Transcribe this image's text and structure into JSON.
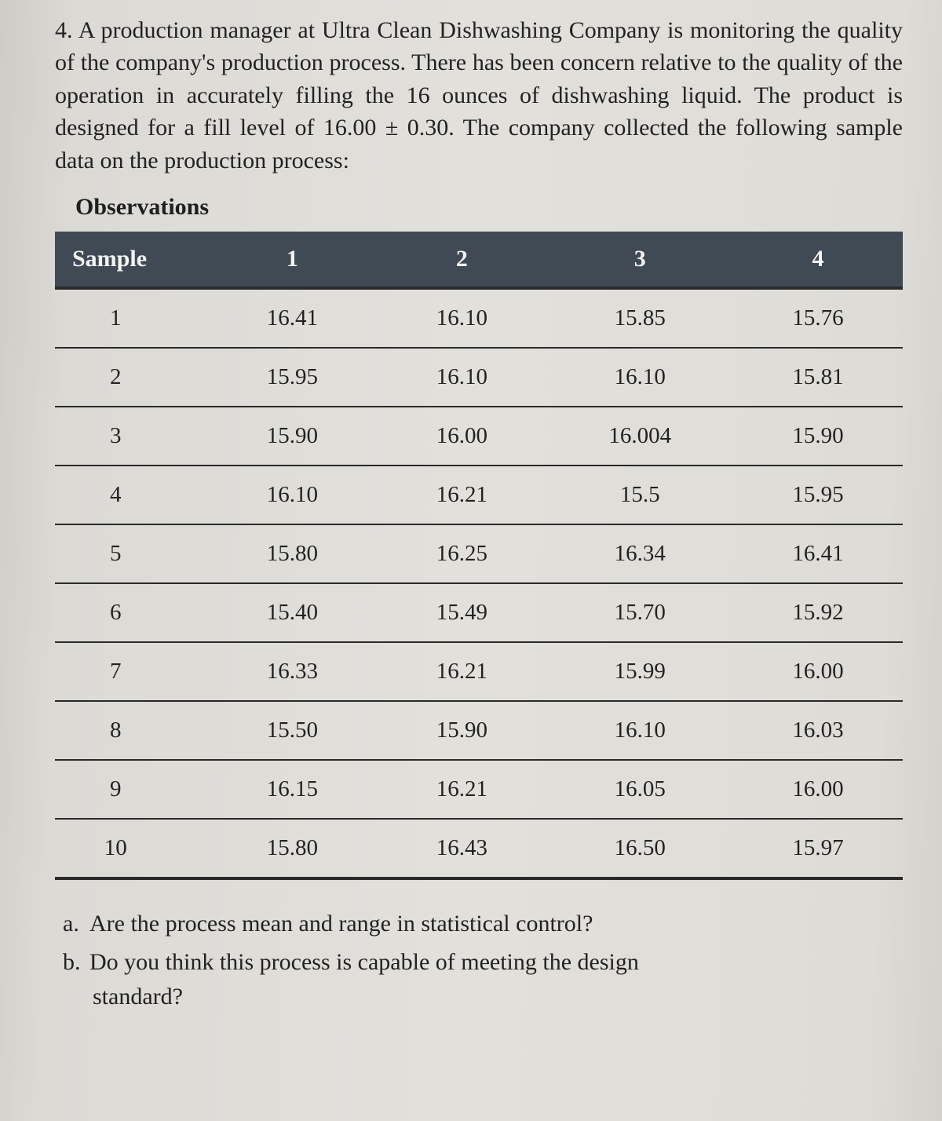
{
  "problem": {
    "number": "4.",
    "text": "A production manager at Ultra Clean Dishwashing Company is monitoring the quality of the company's production process. There has been concern relative to the quality of the operation in accurately filling the 16 ounces of dishwashing liquid. The product is designed for a fill level of 16.00 ± 0.30. The company collected the following sample data on the production process:"
  },
  "observations_label": "Observations",
  "table": {
    "columns": [
      "Sample",
      "1",
      "2",
      "3",
      "4"
    ],
    "rows": [
      [
        "1",
        "16.41",
        "16.10",
        "15.85",
        "15.76"
      ],
      [
        "2",
        "15.95",
        "16.10",
        "16.10",
        "15.81"
      ],
      [
        "3",
        "15.90",
        "16.00",
        "16.004",
        "15.90"
      ],
      [
        "4",
        "16.10",
        "16.21",
        "15.5",
        "15.95"
      ],
      [
        "5",
        "15.80",
        "16.25",
        "16.34",
        "16.41"
      ],
      [
        "6",
        "15.40",
        "15.49",
        "15.70",
        "15.92"
      ],
      [
        "7",
        "16.33",
        "16.21",
        "15.99",
        "16.00"
      ],
      [
        "8",
        "15.50",
        "15.90",
        "16.10",
        "16.03"
      ],
      [
        "9",
        "16.15",
        "16.21",
        "16.05",
        "16.00"
      ],
      [
        "10",
        "15.80",
        "16.43",
        "16.50",
        "15.97"
      ]
    ],
    "col_widths": [
      "18%",
      "20%",
      "20%",
      "22%",
      "20%"
    ],
    "header_bg": "#3f4a55",
    "header_fg": "#f4f4f2",
    "border_color": "#2a2a2a",
    "font_size": 29
  },
  "questions": {
    "a": {
      "letter": "a.",
      "text": "Are the process mean and range in statistical control?"
    },
    "b": {
      "letter": "b.",
      "text": "Do you think this process is capable of meeting the design",
      "cont": "standard?"
    }
  }
}
